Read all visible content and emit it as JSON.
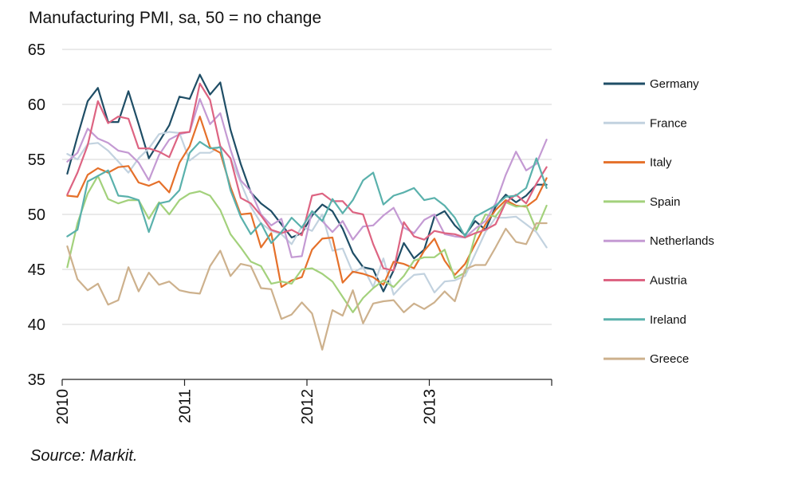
{
  "chart_data": {
    "type": "line",
    "title": "Manufacturing PMI, sa, 50 = no change",
    "source": "Source: Markit.",
    "xlabel": "",
    "ylabel": "",
    "ylim": [
      35,
      65
    ],
    "yticks": [
      35,
      40,
      45,
      50,
      55,
      60,
      65
    ],
    "xticks": [
      "2010",
      "2011",
      "2012",
      "2013"
    ],
    "x_start": "2010-01",
    "x_end": "2013-12",
    "x": [
      "2010-01",
      "2010-02",
      "2010-03",
      "2010-04",
      "2010-05",
      "2010-06",
      "2010-07",
      "2010-08",
      "2010-09",
      "2010-10",
      "2010-11",
      "2010-12",
      "2011-01",
      "2011-02",
      "2011-03",
      "2011-04",
      "2011-05",
      "2011-06",
      "2011-07",
      "2011-08",
      "2011-09",
      "2011-10",
      "2011-11",
      "2011-12",
      "2012-01",
      "2012-02",
      "2012-03",
      "2012-04",
      "2012-05",
      "2012-06",
      "2012-07",
      "2012-08",
      "2012-09",
      "2012-10",
      "2012-11",
      "2012-12",
      "2013-01",
      "2013-02",
      "2013-03",
      "2013-04",
      "2013-05",
      "2013-06",
      "2013-07",
      "2013-08",
      "2013-09",
      "2013-10",
      "2013-11",
      "2013-12"
    ],
    "grid": true,
    "legend_position": "right",
    "series": [
      {
        "name": "Germany",
        "color": "#1f4e66",
        "values": [
          53.7,
          57.1,
          60.3,
          61.5,
          58.4,
          58.4,
          61.2,
          58.2,
          55.1,
          56.6,
          58.1,
          60.7,
          60.5,
          62.7,
          60.9,
          62.0,
          57.7,
          54.6,
          52.0,
          51.0,
          50.3,
          49.1,
          47.9,
          48.3,
          49.9,
          50.9,
          50.3,
          48.7,
          46.5,
          45.2,
          45.0,
          43.0,
          44.9,
          47.4,
          46.0,
          46.8,
          49.8,
          50.3,
          49.0,
          48.1,
          49.4,
          48.6,
          50.7,
          51.8,
          51.1,
          51.7,
          52.7,
          52.7
        ]
      },
      {
        "name": "France",
        "color": "#c2d2df",
        "values": [
          55.5,
          55.0,
          56.4,
          56.5,
          55.8,
          54.8,
          53.8,
          55.1,
          56.0,
          57.3,
          57.5,
          57.4,
          54.9,
          55.6,
          55.6,
          56.2,
          55.1,
          52.9,
          50.7,
          49.2,
          48.5,
          48.2,
          47.3,
          48.9,
          48.5,
          50.0,
          46.7,
          46.9,
          44.7,
          45.2,
          43.4,
          46.0,
          42.7,
          43.7,
          44.5,
          44.6,
          42.9,
          43.9,
          44.0,
          44.4,
          46.4,
          48.4,
          49.7,
          49.7,
          49.8,
          49.1,
          48.4,
          47.0
        ]
      },
      {
        "name": "Italy",
        "color": "#e5702a",
        "values": [
          51.7,
          51.6,
          53.6,
          54.2,
          53.8,
          54.3,
          54.4,
          52.9,
          52.6,
          53.0,
          52.0,
          54.7,
          56.2,
          58.9,
          56.1,
          55.6,
          52.5,
          50.0,
          50.1,
          47.0,
          48.3,
          43.4,
          44.0,
          44.3,
          46.8,
          47.8,
          47.9,
          43.8,
          44.8,
          44.6,
          44.3,
          43.6,
          45.7,
          45.5,
          45.1,
          46.7,
          47.8,
          45.8,
          44.5,
          45.5,
          47.3,
          49.1,
          50.4,
          51.3,
          50.8,
          50.7,
          51.4,
          53.3
        ]
      },
      {
        "name": "Spain",
        "color": "#a3d17c",
        "values": [
          45.2,
          49.2,
          51.9,
          53.5,
          51.4,
          51.0,
          51.3,
          51.3,
          49.6,
          51.1,
          50.0,
          51.3,
          51.9,
          52.1,
          51.7,
          50.4,
          48.2,
          47.0,
          45.7,
          45.3,
          43.7,
          43.9,
          43.7,
          45.0,
          45.1,
          44.6,
          43.9,
          42.5,
          41.1,
          42.4,
          43.3,
          44.0,
          43.4,
          44.4,
          45.8,
          46.1,
          46.1,
          46.8,
          44.2,
          44.7,
          48.1,
          50.0,
          49.8,
          51.1,
          50.7,
          50.8,
          48.6,
          50.8
        ]
      },
      {
        "name": "Netherlands",
        "color": "#c49ad3",
        "values": [
          54.8,
          55.6,
          57.8,
          56.9,
          56.5,
          55.8,
          55.6,
          54.7,
          53.1,
          55.4,
          56.8,
          57.3,
          57.5,
          60.5,
          58.2,
          59.2,
          55.9,
          53.1,
          52.1,
          50.0,
          49.0,
          49.6,
          46.1,
          46.2,
          50.3,
          49.4,
          48.4,
          49.4,
          47.7,
          48.9,
          49.0,
          49.9,
          50.6,
          48.8,
          48.3,
          49.5,
          50.0,
          48.2,
          48.0,
          47.9,
          48.7,
          49.4,
          51.0,
          53.6,
          55.7,
          54.0,
          54.6,
          56.8
        ]
      },
      {
        "name": "Austria",
        "color": "#dd6482",
        "values": [
          51.8,
          53.8,
          56.3,
          60.3,
          58.3,
          58.9,
          58.7,
          56.0,
          56.0,
          55.7,
          55.2,
          57.4,
          57.5,
          61.9,
          60.4,
          56.2,
          55.1,
          51.5,
          51.0,
          49.9,
          48.6,
          48.3,
          48.6,
          48.1,
          51.7,
          51.9,
          51.2,
          51.2,
          50.2,
          50.0,
          47.3,
          45.1,
          44.9,
          49.3,
          48.0,
          47.7,
          48.5,
          48.3,
          48.2,
          47.9,
          48.3,
          48.6,
          49.1,
          51.1,
          51.8,
          51.0,
          52.8,
          54.3
        ]
      },
      {
        "name": "Ireland",
        "color": "#5ab1ac",
        "values": [
          48.0,
          48.6,
          53.0,
          53.5,
          54.0,
          51.7,
          51.6,
          51.3,
          48.4,
          51.0,
          51.2,
          52.2,
          55.6,
          56.6,
          56.0,
          56.1,
          52.2,
          49.8,
          48.2,
          49.2,
          47.4,
          48.4,
          49.7,
          48.8,
          50.3,
          49.4,
          51.4,
          50.1,
          51.3,
          53.1,
          53.8,
          50.9,
          51.7,
          52.0,
          52.4,
          51.3,
          51.5,
          50.8,
          49.7,
          48.0,
          49.8,
          50.3,
          50.8,
          51.6,
          51.7,
          52.4,
          55.1,
          52.4
        ]
      },
      {
        "name": "Greece",
        "color": "#cdb18d",
        "values": [
          47.1,
          44.1,
          43.1,
          43.7,
          41.8,
          42.2,
          45.2,
          43.0,
          44.7,
          43.6,
          43.9,
          43.1,
          42.9,
          42.8,
          45.3,
          46.7,
          44.4,
          45.5,
          45.3,
          43.3,
          43.2,
          40.5,
          40.9,
          42.0,
          41.0,
          37.7,
          41.3,
          40.8,
          43.1,
          40.1,
          41.9,
          42.1,
          42.2,
          41.1,
          41.9,
          41.4,
          42.0,
          43.0,
          42.1,
          45.0,
          45.4,
          45.4,
          47.0,
          48.7,
          47.5,
          47.3,
          49.2,
          49.2
        ]
      }
    ]
  }
}
